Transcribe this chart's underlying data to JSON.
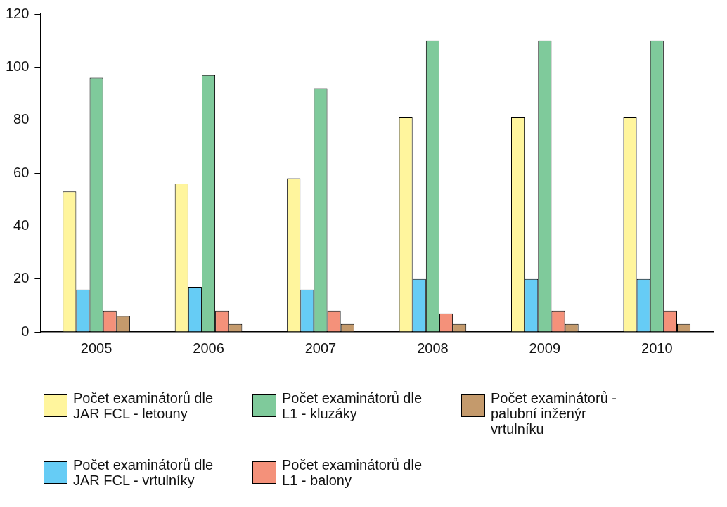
{
  "chart_data": {
    "type": "bar",
    "categories": [
      "2005",
      "2006",
      "2007",
      "2008",
      "2009",
      "2010"
    ],
    "series": [
      {
        "name": "Počet examinátorů dle JAR FCL - letouny",
        "color": "#fff59d",
        "values": [
          53,
          56,
          58,
          81,
          81,
          81
        ]
      },
      {
        "name": "Počet examinátorů dle JAR FCL - vrtulníky",
        "color": "#66ccf5",
        "values": [
          16,
          17,
          16,
          20,
          20,
          20
        ]
      },
      {
        "name": "Počet examinátorů dle L1 - kluzáky",
        "color": "#7fca9b",
        "values": [
          96,
          97,
          92,
          110,
          110,
          110
        ]
      },
      {
        "name": "Počet examinátorů dle L1 - balony",
        "color": "#f4917a",
        "values": [
          8,
          8,
          8,
          7,
          8,
          8
        ]
      },
      {
        "name": "Počet examinátorů - palubní inženýr vrtulníku",
        "color": "#c49a6c",
        "values": [
          6,
          3,
          3,
          3,
          3,
          3
        ]
      }
    ],
    "ylim": [
      0,
      120
    ],
    "yticks": [
      0,
      20,
      40,
      60,
      80,
      100,
      120
    ],
    "grid": false,
    "legend": "bottom"
  }
}
